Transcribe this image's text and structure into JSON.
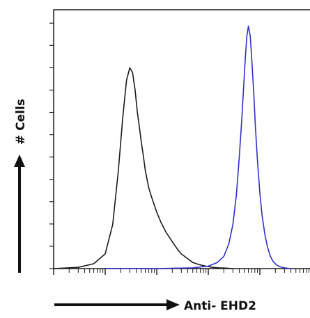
{
  "chart_data": {
    "type": "line",
    "title": "",
    "xlabel": "Anti- EHD2",
    "ylabel": "# Cells",
    "x_scale": "log",
    "xlim": [
      1,
      100000
    ],
    "ylim": [
      0,
      100
    ],
    "grid": false,
    "legend": "none",
    "series": [
      {
        "color": "#1a1a1a",
        "x": [
          1,
          3,
          6,
          10,
          14,
          18,
          22,
          26,
          30,
          34,
          38,
          42,
          46,
          50,
          55,
          60,
          70,
          80,
          100,
          120,
          150,
          200,
          250,
          300,
          400,
          500,
          700,
          900,
          1200,
          1600,
          2200,
          3000
        ],
        "y": [
          0,
          0.5,
          2,
          6,
          18,
          40,
          62,
          77,
          82,
          80,
          73,
          64,
          58,
          52,
          46,
          40,
          33,
          29,
          23,
          19,
          15,
          11,
          8,
          6,
          4,
          2.5,
          1.5,
          1,
          0.5,
          0.3,
          0.2,
          0
        ]
      },
      {
        "color": "#2f2fc8",
        "x": [
          10,
          100,
          500,
          1000,
          1500,
          2000,
          2500,
          3000,
          3500,
          4000,
          4500,
          5000,
          5300,
          5600,
          6000,
          6500,
          7000,
          7600,
          8200,
          9000,
          10000,
          11000,
          12500,
          14000,
          16000,
          18000,
          21000,
          25000,
          30000,
          40000
        ],
        "y": [
          0,
          0,
          0.3,
          1,
          2.5,
          5,
          10,
          18,
          30,
          46,
          62,
          79,
          88,
          95,
          99,
          95,
          85,
          72,
          58,
          44,
          31,
          22,
          14,
          9,
          5,
          3,
          1.5,
          0.7,
          0.3,
          0
        ]
      }
    ]
  }
}
